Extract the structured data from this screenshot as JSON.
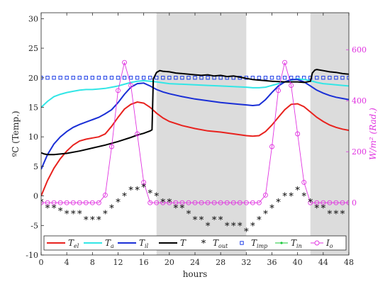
{
  "chart_data": {
    "type": "line",
    "xlabel": "hours",
    "ylabel_left": "ºC (Temp.)",
    "ylabel_right": "W/m² (Rad.)",
    "xlim": [
      0,
      48
    ],
    "ylim_left": [
      -10,
      31
    ],
    "ylim_right": [
      -205,
      745
    ],
    "x_ticks": [
      0,
      4,
      8,
      12,
      16,
      20,
      24,
      28,
      32,
      36,
      40,
      44,
      48
    ],
    "y_ticks_left": [
      -10,
      -5,
      0,
      5,
      10,
      15,
      20,
      25,
      30
    ],
    "y_ticks_right": [
      0,
      200,
      400,
      600
    ],
    "shaded_regions": [
      [
        18,
        32
      ],
      [
        42,
        48
      ]
    ],
    "colors": {
      "T_el": "#e8221e",
      "T_a": "#32e6e6",
      "T_il": "#1a2fd6",
      "T": "#000000",
      "T_out": "#000000",
      "T_imp": "#1f3fe6",
      "T_in": "#19c93a",
      "I_o": "#e033e0",
      "shade": "#dcdcdc",
      "right_axis": "#e033e0"
    },
    "legend": [
      {
        "key": "T_el",
        "base": "T",
        "sub": "el"
      },
      {
        "key": "T_a",
        "base": "T",
        "sub": "a"
      },
      {
        "key": "T_il",
        "base": "T",
        "sub": "il"
      },
      {
        "key": "T",
        "base": "T",
        "sub": ""
      },
      {
        "key": "T_out",
        "base": "T",
        "sub": "out"
      },
      {
        "key": "T_imp",
        "base": "T",
        "sub": "imp"
      },
      {
        "key": "T_in",
        "base": "T",
        "sub": "in"
      },
      {
        "key": "I_o",
        "base": "I",
        "sub": "o"
      }
    ],
    "series": [
      {
        "key": "T_el",
        "axis": "left",
        "x": [
          0,
          1,
          2,
          3,
          4,
          5,
          6,
          7,
          8,
          9,
          10,
          11,
          12,
          13,
          14,
          15,
          16,
          17,
          18,
          19,
          20,
          22,
          24,
          26,
          28,
          30,
          32,
          33,
          34,
          35,
          36,
          37,
          38,
          39,
          40,
          41,
          42,
          43,
          44,
          45,
          46,
          47,
          48
        ],
        "y": [
          0,
          2.6,
          4.7,
          6.3,
          7.6,
          8.6,
          9.3,
          9.6,
          9.8,
          10.0,
          10.5,
          11.8,
          13.3,
          14.7,
          15.5,
          15.9,
          15.7,
          15.0,
          14.0,
          13.2,
          12.6,
          11.9,
          11.4,
          11.0,
          10.8,
          10.5,
          10.2,
          10.1,
          10.2,
          10.9,
          12.0,
          13.3,
          14.6,
          15.5,
          15.6,
          15.1,
          14.2,
          13.3,
          12.6,
          12.0,
          11.6,
          11.3,
          11.1
        ]
      },
      {
        "key": "T_a",
        "axis": "left",
        "x": [
          0,
          1,
          2,
          3,
          4,
          5,
          6,
          7,
          8,
          9,
          10,
          11,
          12,
          13,
          14,
          15,
          16,
          17,
          18,
          20,
          22,
          24,
          26,
          28,
          30,
          32,
          33,
          34,
          35,
          36,
          37,
          38,
          39,
          40,
          41,
          42,
          43,
          44,
          45,
          46,
          47,
          48
        ],
        "y": [
          15.0,
          16.0,
          16.8,
          17.2,
          17.5,
          17.7,
          17.9,
          18.0,
          18.0,
          18.1,
          18.2,
          18.4,
          18.6,
          18.9,
          19.2,
          19.4,
          19.5,
          19.4,
          19.3,
          19.0,
          18.9,
          18.8,
          18.7,
          18.6,
          18.5,
          18.4,
          18.3,
          18.3,
          18.4,
          18.7,
          19.0,
          19.3,
          19.6,
          19.8,
          19.7,
          19.5,
          19.2,
          19.0,
          18.9,
          18.8,
          18.7,
          18.6
        ]
      },
      {
        "key": "T_il",
        "axis": "left",
        "x": [
          0,
          1,
          2,
          3,
          4,
          5,
          6,
          7,
          8,
          9,
          10,
          11,
          12,
          13,
          14,
          15,
          16,
          17,
          18,
          19,
          20,
          22,
          24,
          26,
          28,
          30,
          32,
          33,
          34,
          35,
          36,
          37,
          38,
          39,
          40,
          41,
          42,
          43,
          44,
          45,
          46,
          47,
          48
        ],
        "y": [
          4.5,
          7.0,
          8.8,
          10.0,
          10.9,
          11.6,
          12.1,
          12.5,
          12.9,
          13.3,
          13.9,
          14.6,
          15.8,
          17.2,
          18.4,
          19.0,
          19.1,
          18.6,
          18.0,
          17.6,
          17.3,
          16.8,
          16.4,
          16.1,
          15.8,
          15.6,
          15.4,
          15.3,
          15.4,
          16.3,
          17.5,
          18.6,
          19.3,
          19.7,
          19.7,
          19.3,
          18.6,
          17.9,
          17.4,
          17.0,
          16.7,
          16.5,
          16.3
        ]
      },
      {
        "key": "T",
        "axis": "left",
        "x": [
          0,
          0.5,
          1,
          2,
          4,
          6,
          8,
          10,
          12,
          14,
          15,
          16,
          17,
          17.3,
          17.5,
          18,
          18.5,
          19,
          20,
          21,
          22,
          23,
          24,
          25,
          26,
          27,
          28,
          29,
          30,
          31,
          32,
          33,
          34,
          35,
          36,
          38,
          40,
          41,
          41.5,
          42,
          42.3,
          42.7,
          43,
          44,
          45,
          46,
          47,
          48
        ],
        "y": [
          7.3,
          7.1,
          7.0,
          7.0,
          7.2,
          7.6,
          8.1,
          8.6,
          9.2,
          9.9,
          10.3,
          10.6,
          11.0,
          11.2,
          19.8,
          20.9,
          21.2,
          21.1,
          21.0,
          20.8,
          20.7,
          20.6,
          20.5,
          20.4,
          20.5,
          20.3,
          20.4,
          20.2,
          20.3,
          20.1,
          19.9,
          19.7,
          19.6,
          19.5,
          19.4,
          19.3,
          19.3,
          19.2,
          19.3,
          19.4,
          20.8,
          21.3,
          21.4,
          21.2,
          21.0,
          20.9,
          20.7,
          20.6
        ]
      },
      {
        "key": "T_out",
        "axis": "left",
        "x": [
          0,
          1,
          2,
          3,
          4,
          5,
          6,
          7,
          8,
          9,
          10,
          11,
          12,
          13,
          14,
          15,
          16,
          17,
          18,
          19,
          20,
          21,
          22,
          23,
          24,
          25,
          26,
          27,
          28,
          29,
          30,
          31,
          32,
          33,
          34,
          35,
          36,
          37,
          38,
          39,
          40,
          41,
          42,
          43,
          44,
          45,
          46,
          47
        ],
        "y": [
          -1,
          -2,
          -2,
          -2.5,
          -3,
          -3,
          -3,
          -4,
          -4,
          -4,
          -3,
          -2,
          -1,
          0,
          1,
          1,
          1.5,
          0.5,
          0,
          -1,
          -1,
          -2,
          -2,
          -3,
          -4,
          -4,
          -5,
          -4,
          -4,
          -5,
          -5,
          -5,
          -6,
          -5,
          -4,
          -3,
          -2,
          -1,
          0,
          0,
          1,
          0,
          -1,
          -2,
          -2,
          -3,
          -3,
          -3
        ]
      },
      {
        "key": "T_imp",
        "axis": "left",
        "x": [
          0,
          1,
          2,
          3,
          4,
          5,
          6,
          7,
          8,
          9,
          10,
          11,
          12,
          13,
          14,
          15,
          16,
          17,
          18,
          19,
          20,
          21,
          22,
          23,
          24,
          25,
          26,
          27,
          28,
          29,
          30,
          31,
          32,
          33,
          34,
          35,
          36,
          37,
          38,
          39,
          40,
          41,
          42,
          43,
          44,
          45,
          46,
          47,
          48
        ],
        "y": [
          20,
          20,
          20,
          20,
          20,
          20,
          20,
          20,
          20,
          20,
          20,
          20,
          20,
          20,
          20,
          20,
          20,
          20,
          20,
          20,
          20,
          20,
          20,
          20,
          20,
          20,
          20,
          20,
          20,
          20,
          20,
          20,
          20,
          20,
          20,
          20,
          20,
          20,
          20,
          20,
          20,
          20,
          20,
          20,
          20,
          20,
          20,
          20,
          20
        ]
      },
      {
        "key": "I_o",
        "axis": "right",
        "x": [
          0,
          1,
          2,
          3,
          4,
          5,
          6,
          7,
          8,
          9,
          10,
          11,
          12,
          13,
          14,
          15,
          16,
          17,
          18,
          19,
          20,
          21,
          22,
          23,
          24,
          25,
          26,
          27,
          28,
          29,
          30,
          31,
          32,
          33,
          34,
          35,
          36,
          37,
          38,
          39,
          40,
          41,
          42,
          43,
          44,
          45,
          46,
          47,
          48
        ],
        "y": [
          0,
          0,
          0,
          0,
          0,
          0,
          0,
          0,
          0,
          0,
          30,
          220,
          440,
          550,
          460,
          270,
          80,
          0,
          0,
          0,
          0,
          0,
          0,
          0,
          0,
          0,
          0,
          0,
          0,
          0,
          0,
          0,
          0,
          0,
          0,
          30,
          220,
          440,
          550,
          460,
          270,
          80,
          0,
          0,
          0,
          0,
          0,
          0,
          0
        ]
      }
    ]
  }
}
